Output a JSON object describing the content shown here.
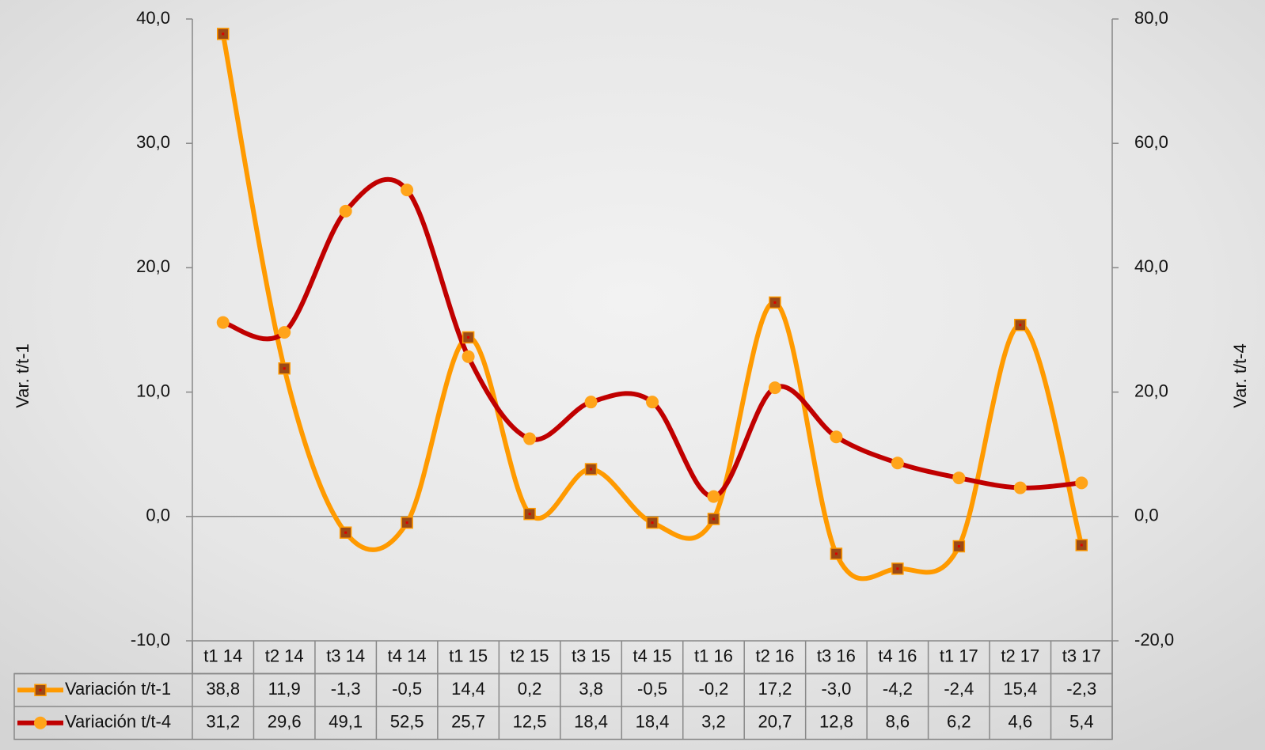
{
  "chart_data": {
    "type": "line",
    "categories": [
      "t1 14",
      "t2 14",
      "t3 14",
      "t4 14",
      "t1 15",
      "t2 15",
      "t3 15",
      "t4 15",
      "t1 16",
      "t2 16",
      "t3 16",
      "t4 16",
      "t1 17",
      "t2 17",
      "t3 17"
    ],
    "series": [
      {
        "name": "Variación t/t-1",
        "color": "#ff9a00",
        "marker_color": "#9b4a16",
        "marker": "square",
        "values": [
          38.8,
          11.9,
          -1.3,
          -0.5,
          14.4,
          0.2,
          3.8,
          -0.5,
          -0.2,
          17.2,
          -3.0,
          -4.2,
          -2.4,
          15.4,
          -2.3
        ],
        "value_labels": [
          "38,8",
          "11,9",
          "-1,3",
          "-0,5",
          "14,4",
          "0,2",
          "3,8",
          "-0,5",
          "-0,2",
          "17,2",
          "-3,0",
          "-4,2",
          "-2,4",
          "15,4",
          "-2,3"
        ]
      },
      {
        "name": "Variación t/t-4",
        "color": "#c00000",
        "marker_color": "#ffa41a",
        "marker": "circle",
        "axis": "y2",
        "values": [
          31.2,
          29.6,
          49.1,
          52.5,
          25.7,
          12.5,
          18.4,
          18.4,
          3.2,
          20.7,
          12.8,
          8.6,
          6.2,
          4.6,
          5.4
        ],
        "value_labels": [
          "31,2",
          "29,6",
          "49,1",
          "52,5",
          "25,7",
          "12,5",
          "18,4",
          "18,4",
          "3,2",
          "20,7",
          "12,8",
          "8,6",
          "6,2",
          "4,6",
          "5,4"
        ]
      }
    ],
    "ylabel": "Var. t/t-1",
    "y2label": "Var. t/t-4",
    "ylim": [
      -10,
      40
    ],
    "yticks": [
      {
        "value": -10,
        "label": "-10,0"
      },
      {
        "value": 0,
        "label": "0,0"
      },
      {
        "value": 10,
        "label": "10,0"
      },
      {
        "value": 20,
        "label": "20,0"
      },
      {
        "value": 30,
        "label": "30,0"
      },
      {
        "value": 40,
        "label": "40,0"
      }
    ],
    "y2lim": [
      -20,
      80
    ],
    "y2ticks": [
      {
        "value": -20,
        "label": "-20,0"
      },
      {
        "value": 0,
        "label": "0,0"
      },
      {
        "value": 20,
        "label": "20,0"
      },
      {
        "value": 40,
        "label": "40,0"
      },
      {
        "value": 60,
        "label": "60,0"
      },
      {
        "value": 80,
        "label": "80,0"
      }
    ],
    "smooth": true
  }
}
